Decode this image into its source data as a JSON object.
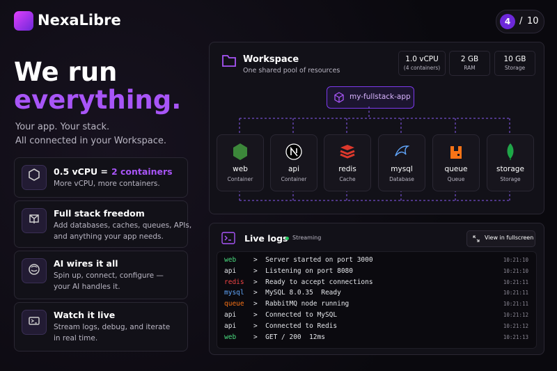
{
  "brand": "NexaLibre",
  "pager": {
    "current": 4,
    "separator": "/",
    "total": 10
  },
  "hero": {
    "line1": "We run",
    "line2": "everything.",
    "sub1": "Your app. Your stack.",
    "sub2": "All connected in your Workspace."
  },
  "features": [
    {
      "title": "0.5 vCPU =",
      "highlight": "2 containers",
      "desc": [
        "More vCPU, more containers."
      ]
    },
    {
      "title": "Full stack freedom",
      "desc": [
        "Add databases, caches, queues, APIs,",
        "and anything your app needs."
      ]
    },
    {
      "title": "AI wires it all",
      "desc": [
        "Spin up, connect, configure —",
        "your AI handles it."
      ]
    },
    {
      "title": "Watch it live",
      "desc": [
        "Stream logs, debug, and iterate",
        "in real time."
      ]
    }
  ],
  "workspace": {
    "title": "Workspace",
    "subtitle": "One shared pool of resources",
    "stats": [
      {
        "value": "1.0 vCPU",
        "label": "(4 containers)"
      },
      {
        "value": "2 GB",
        "label": "RAM"
      },
      {
        "value": "10 GB",
        "label": "Storage"
      }
    ],
    "app": "my-fullstack-app",
    "services": [
      {
        "name": "web",
        "kind": "Container"
      },
      {
        "name": "api",
        "kind": "Container"
      },
      {
        "name": "redis",
        "kind": "Cache"
      },
      {
        "name": "mysql",
        "kind": "Database"
      },
      {
        "name": "queue",
        "kind": "Queue"
      },
      {
        "name": "storage",
        "kind": "Storage"
      }
    ]
  },
  "logs": {
    "title": "Live logs",
    "status": "Streaming",
    "button": "View in fullscreen",
    "lines": [
      {
        "source": "web",
        "color": "#4ade80",
        "message": ">  Server started on port 3000",
        "time": "10:21:10"
      },
      {
        "source": "api",
        "color": "#e5e7eb",
        "message": ">  Listening on port 8080",
        "time": "10:21:10"
      },
      {
        "source": "redis",
        "color": "#ef4444",
        "message": ">  Ready to accept connections",
        "time": "10:21:11"
      },
      {
        "source": "mysql",
        "color": "#60a5fa",
        "message": ">  MySQL 8.0.35  Ready",
        "time": "10:21:11"
      },
      {
        "source": "queue",
        "color": "#f97316",
        "message": ">  RabbitMQ node running",
        "time": "10:21:11"
      },
      {
        "source": "api",
        "color": "#e5e7eb",
        "message": ">  Connected to MySQL",
        "time": "10:21:12"
      },
      {
        "source": "api",
        "color": "#e5e7eb",
        "message": ">  Connected to Redis",
        "time": "10:21:12"
      },
      {
        "source": "web",
        "color": "#4ade80",
        "message": ">  GET / 200  12ms",
        "time": "10:21:13"
      }
    ]
  }
}
